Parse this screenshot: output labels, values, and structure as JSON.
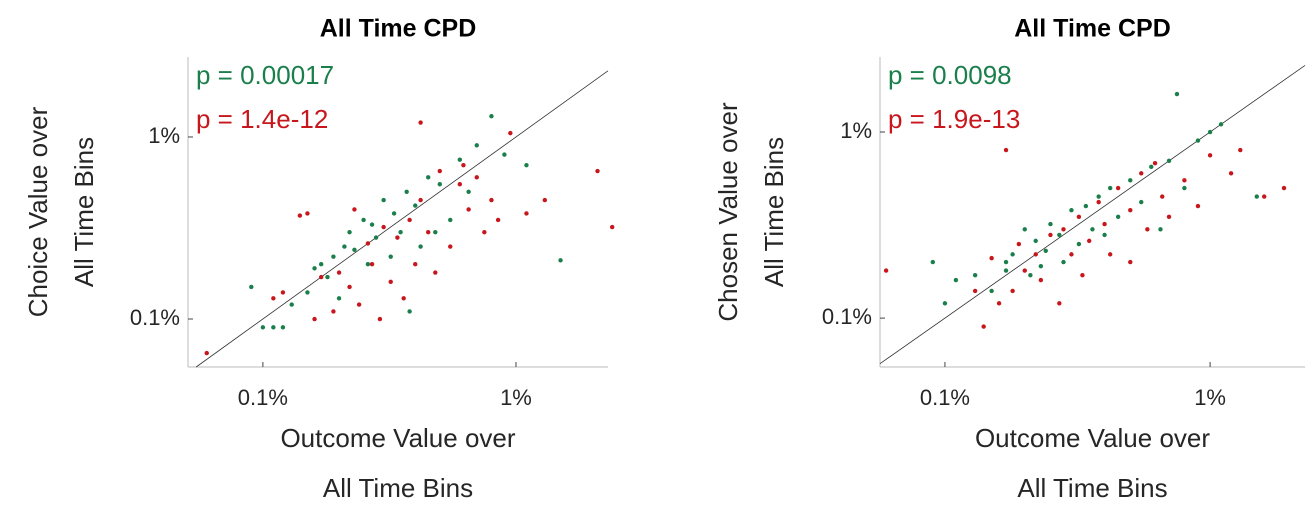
{
  "chart_data": [
    {
      "type": "scatter",
      "title": "All Time CPD",
      "xlabel": [
        "Outcome Value over",
        "All Time Bins"
      ],
      "ylabel": [
        "Choice Value over",
        "All Time Bins"
      ],
      "xscale": "log",
      "yscale": "log",
      "xlim": [
        0.0506,
        2.31
      ],
      "ylim": [
        0.0545,
        2.75
      ],
      "xticks": [
        {
          "value": 0.1,
          "label": "0.1%"
        },
        {
          "value": 1,
          "label": "1%"
        }
      ],
      "yticks": [
        {
          "value": 0.1,
          "label": "0.1%"
        },
        {
          "value": 1,
          "label": "1%"
        }
      ],
      "annotations": [
        {
          "text": "p = 0.00017",
          "color": "#1b7f4c"
        },
        {
          "text": "p = 1.4e-12",
          "color": "#c8161d"
        }
      ],
      "series": [
        {
          "color": "#1b7f4c",
          "x": [
            0.09,
            0.1,
            0.11,
            0.12,
            0.13,
            0.15,
            0.16,
            0.17,
            0.18,
            0.19,
            0.2,
            0.21,
            0.22,
            0.23,
            0.25,
            0.26,
            0.27,
            0.28,
            0.3,
            0.32,
            0.33,
            0.35,
            0.37,
            0.4,
            0.42,
            0.45,
            0.5,
            0.55,
            0.6,
            0.65,
            0.7,
            0.8,
            0.9,
            1.1,
            1.5,
            0.38,
            0.48
          ],
          "values": [
            0.15,
            0.09,
            0.09,
            0.09,
            0.12,
            0.14,
            0.19,
            0.2,
            0.17,
            0.22,
            0.13,
            0.25,
            0.3,
            0.24,
            0.35,
            0.2,
            0.33,
            0.28,
            0.45,
            0.22,
            0.38,
            0.3,
            0.5,
            0.42,
            0.25,
            0.6,
            0.55,
            0.35,
            0.75,
            0.5,
            0.9,
            1.3,
            0.8,
            0.7,
            0.21,
            0.11,
            0.3
          ]
        },
        {
          "color": "#c8161d",
          "x": [
            0.06,
            0.11,
            0.12,
            0.14,
            0.15,
            0.16,
            0.17,
            0.19,
            0.2,
            0.22,
            0.23,
            0.24,
            0.26,
            0.27,
            0.29,
            0.3,
            0.32,
            0.34,
            0.36,
            0.38,
            0.4,
            0.42,
            0.45,
            0.48,
            0.5,
            0.55,
            0.6,
            0.62,
            0.65,
            0.7,
            0.75,
            0.8,
            0.85,
            0.95,
            1.1,
            1.3,
            2.1,
            2.4,
            0.42
          ],
          "values": [
            0.065,
            0.13,
            0.14,
            0.37,
            0.38,
            0.1,
            0.17,
            0.11,
            0.18,
            0.15,
            0.4,
            0.12,
            0.26,
            0.2,
            0.1,
            0.32,
            0.16,
            0.28,
            0.13,
            0.35,
            0.2,
            0.45,
            0.3,
            0.18,
            0.65,
            0.25,
            0.55,
            0.7,
            0.4,
            0.6,
            0.3,
            0.45,
            0.35,
            1.05,
            0.38,
            0.45,
            0.65,
            0.32,
            1.2
          ]
        }
      ]
    },
    {
      "type": "scatter",
      "title": "All Time CPD",
      "xlabel": [
        "Outcome Value over",
        "All Time Bins"
      ],
      "ylabel": [
        "Chosen Value over",
        "All Time Bins"
      ],
      "xscale": "log",
      "yscale": "log",
      "xlim": [
        0.0569,
        2.28
      ],
      "ylim": [
        0.0546,
        2.53
      ],
      "xticks": [
        {
          "value": 0.1,
          "label": "0.1%"
        },
        {
          "value": 1,
          "label": "1%"
        }
      ],
      "yticks": [
        {
          "value": 0.1,
          "label": "0.1%"
        },
        {
          "value": 1,
          "label": "1%"
        }
      ],
      "annotations": [
        {
          "text": "p = 0.0098",
          "color": "#1b7f4c"
        },
        {
          "text": "p = 1.9e-13",
          "color": "#c8161d"
        }
      ],
      "series": [
        {
          "color": "#1b7f4c",
          "x": [
            0.09,
            0.1,
            0.11,
            0.13,
            0.15,
            0.17,
            0.18,
            0.2,
            0.21,
            0.22,
            0.24,
            0.25,
            0.27,
            0.28,
            0.3,
            0.32,
            0.34,
            0.36,
            0.38,
            0.4,
            0.42,
            0.45,
            0.5,
            0.55,
            0.6,
            0.65,
            0.7,
            0.75,
            0.8,
            0.9,
            1.0,
            1.1,
            1.5,
            0.17,
            0.23
          ],
          "values": [
            0.2,
            0.12,
            0.16,
            0.17,
            0.14,
            0.2,
            0.22,
            0.3,
            0.17,
            0.26,
            0.23,
            0.32,
            0.28,
            0.2,
            0.38,
            0.25,
            0.4,
            0.3,
            0.45,
            0.28,
            0.5,
            0.35,
            0.55,
            0.42,
            0.65,
            0.3,
            0.7,
            1.6,
            0.5,
            0.9,
            1.0,
            1.1,
            0.45,
            0.18,
            0.19
          ]
        },
        {
          "color": "#c8161d",
          "x": [
            0.06,
            0.13,
            0.14,
            0.15,
            0.16,
            0.17,
            0.18,
            0.19,
            0.2,
            0.22,
            0.23,
            0.25,
            0.27,
            0.28,
            0.3,
            0.32,
            0.33,
            0.35,
            0.38,
            0.4,
            0.42,
            0.45,
            0.5,
            0.55,
            0.58,
            0.62,
            0.66,
            0.7,
            0.8,
            0.9,
            1.0,
            1.2,
            1.3,
            1.6,
            1.9,
            0.5
          ],
          "values": [
            0.18,
            0.14,
            0.09,
            0.21,
            0.12,
            0.8,
            0.14,
            0.25,
            0.18,
            0.22,
            0.16,
            0.28,
            0.12,
            0.3,
            0.22,
            0.35,
            0.17,
            0.26,
            0.42,
            0.32,
            0.22,
            0.5,
            0.38,
            0.6,
            0.3,
            0.68,
            0.45,
            0.35,
            0.55,
            0.4,
            0.75,
            0.6,
            0.8,
            0.45,
            0.5,
            0.2
          ]
        }
      ]
    }
  ]
}
